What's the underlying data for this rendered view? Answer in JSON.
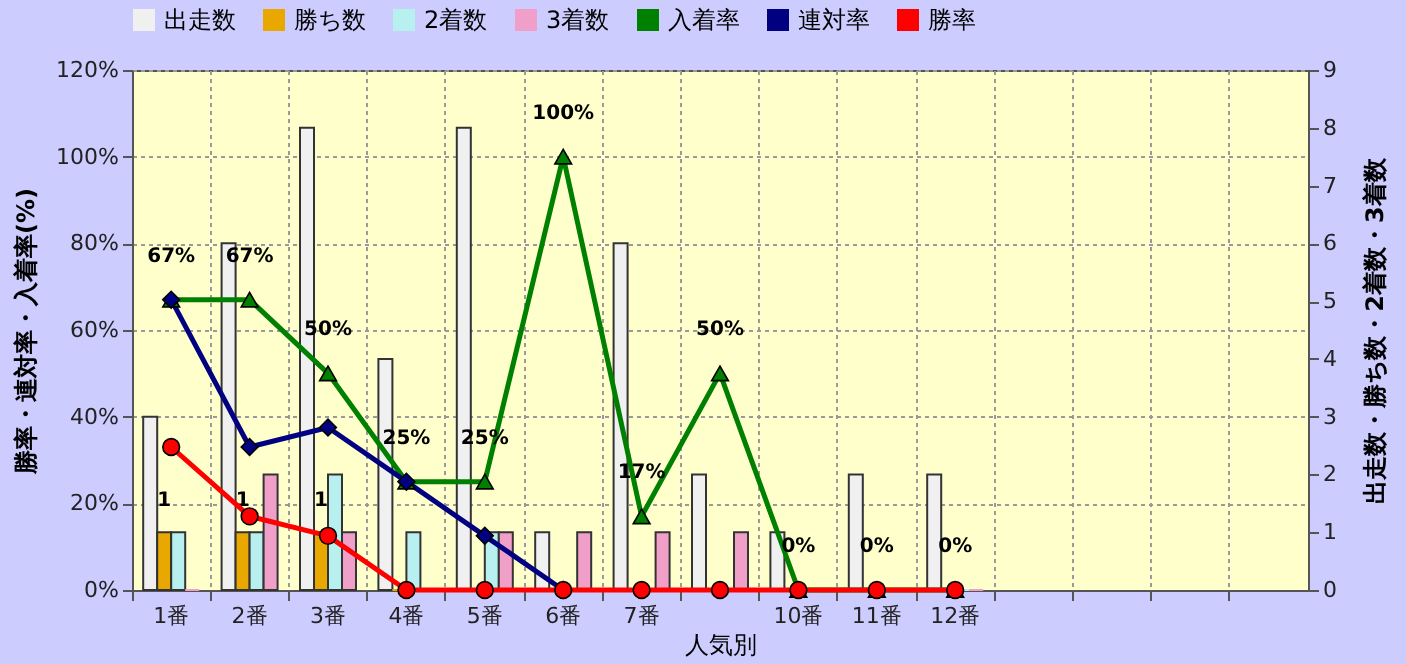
{
  "chart_data": {
    "type": "bar",
    "xlabel": "人気別",
    "ylabel": "勝率・連対率・入着率(%)",
    "y2label": "出走数・勝ち数・2着数・3着数",
    "categories": [
      "1番",
      "2番",
      "3番",
      "4番",
      "5番",
      "6番",
      "7番",
      null,
      "10番",
      "11番",
      "12番",
      null,
      null,
      null,
      null
    ],
    "series": [
      {
        "name": "出走数",
        "color": "#f0f0f0",
        "axis": "y2",
        "values": [
          3,
          6,
          8,
          4,
          8,
          1,
          6,
          2,
          1,
          2,
          2,
          null,
          null,
          null,
          null
        ]
      },
      {
        "name": "勝ち数",
        "color": "#e8a800",
        "axis": "y2",
        "values": [
          1,
          1,
          1,
          0,
          0,
          0,
          0,
          0,
          0,
          0,
          0,
          null,
          null,
          null,
          null
        ],
        "value_labels": [
          "1",
          "1",
          "1",
          null,
          null,
          null,
          null,
          null,
          null,
          null,
          null,
          null,
          null,
          null,
          null
        ]
      },
      {
        "name": "2着数",
        "color": "#b8f0f0",
        "axis": "y2",
        "values": [
          1,
          1,
          2,
          1,
          1,
          0,
          0,
          0,
          0,
          0,
          0,
          null,
          null,
          null,
          null
        ]
      },
      {
        "name": "3着数",
        "color": "#f0a0c8",
        "axis": "y2",
        "values": [
          0,
          2,
          1,
          0,
          1,
          1,
          1,
          1,
          0,
          0,
          0,
          null,
          null,
          null,
          null
        ]
      },
      {
        "name": "入着率",
        "type": "line",
        "marker": "triangle",
        "color": "#008000",
        "values": [
          67,
          67,
          50,
          25,
          25,
          100,
          17,
          50,
          0,
          0,
          0,
          null,
          null,
          null,
          null
        ],
        "value_labels": [
          "67%",
          "67%",
          "50%",
          "25%",
          "25%",
          "100%",
          "17%",
          "50%",
          "0%",
          "0%",
          "0%",
          null,
          null,
          null,
          null
        ]
      },
      {
        "name": "連対率",
        "type": "line",
        "marker": "diamond",
        "color": "#000080",
        "values": [
          67,
          33,
          37.5,
          25,
          12.5,
          0,
          null,
          null,
          null,
          null,
          null,
          null,
          null,
          null,
          null
        ]
      },
      {
        "name": "勝率",
        "type": "line",
        "marker": "circle",
        "color": "#ff0000",
        "values": [
          33,
          17,
          12.5,
          0,
          0,
          0,
          0,
          0,
          0,
          0,
          0,
          null,
          null,
          null,
          null
        ]
      }
    ],
    "ylim": [
      0,
      120
    ],
    "yticks": [
      {
        "value": 0,
        "label": "0%"
      },
      {
        "value": 20,
        "label": "20%"
      },
      {
        "value": 40,
        "label": "40%"
      },
      {
        "value": 60,
        "label": "60%"
      },
      {
        "value": 80,
        "label": "80%"
      },
      {
        "value": 100,
        "label": "100%"
      },
      {
        "value": 120,
        "label": "120%"
      }
    ],
    "y2lim": [
      0,
      9
    ],
    "y2ticks": [
      0,
      1,
      2,
      3,
      4,
      5,
      6,
      7,
      8,
      9
    ],
    "grid": true,
    "legend": "top"
  }
}
